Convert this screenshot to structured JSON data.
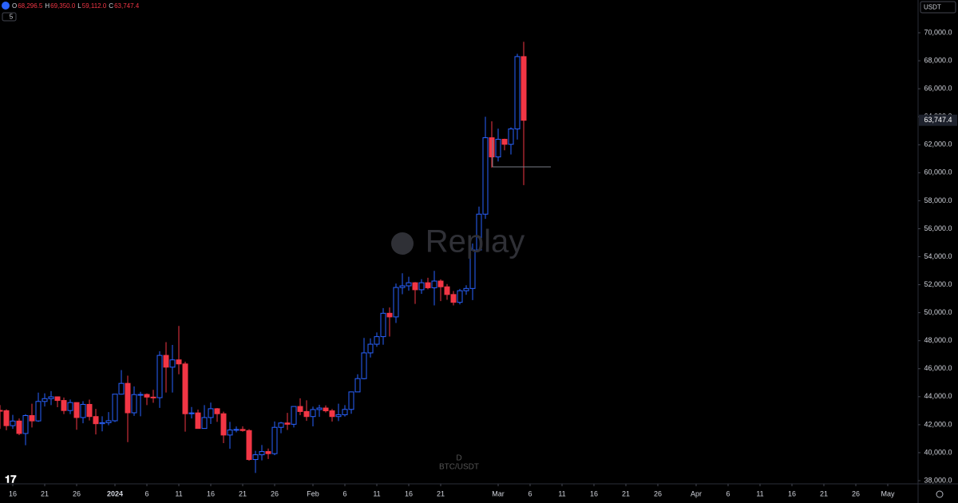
{
  "chart_data": {
    "type": "candlestick",
    "symbol": "BTC/USDT",
    "interval": "D",
    "watermark": "Replay",
    "currency": "USDT",
    "resolution_button": "5",
    "legend_ohlc": [
      {
        "key": "O",
        "value": "68,296.5"
      },
      {
        "key": "H",
        "value": "69,350.0"
      },
      {
        "key": "L",
        "value": "59,112.0"
      },
      {
        "key": "C",
        "value": "63,747.4"
      }
    ],
    "last_price": {
      "value": 63747.4,
      "label": "63,747.4"
    },
    "up_color": "#2962ff",
    "down_color": "#f23645",
    "ylim": [
      37830,
      72340
    ],
    "yticks": [
      {
        "value": 38000,
        "label": "38,000.0"
      },
      {
        "value": 40000,
        "label": "40,000.0"
      },
      {
        "value": 42000,
        "label": "42,000.0"
      },
      {
        "value": 44000,
        "label": "44,000.0"
      },
      {
        "value": 46000,
        "label": "46,000.0"
      },
      {
        "value": 48000,
        "label": "48,000.0"
      },
      {
        "value": 50000,
        "label": "50,000.0"
      },
      {
        "value": 52000,
        "label": "52,000.0"
      },
      {
        "value": 54000,
        "label": "54,000.0"
      },
      {
        "value": 56000,
        "label": "56,000.0"
      },
      {
        "value": 58000,
        "label": "58,000.0"
      },
      {
        "value": 60000,
        "label": "60,000.0"
      },
      {
        "value": 62000,
        "label": "62,000.0"
      },
      {
        "value": 64000,
        "label": "64,000.0"
      },
      {
        "value": 66000,
        "label": "66,000.0"
      },
      {
        "value": 68000,
        "label": "68,000.0"
      },
      {
        "value": 70000,
        "label": "70,000.0"
      }
    ],
    "xticks": [
      {
        "value": "2023-12-16",
        "label": "16"
      },
      {
        "value": "2023-12-21",
        "label": "21"
      },
      {
        "value": "2023-12-26",
        "label": "26"
      },
      {
        "value": "2024-01-01",
        "label": "2024"
      },
      {
        "value": "2024-01-06",
        "label": "6"
      },
      {
        "value": "2024-01-11",
        "label": "11"
      },
      {
        "value": "2024-01-16",
        "label": "16"
      },
      {
        "value": "2024-01-21",
        "label": "21"
      },
      {
        "value": "2024-01-26",
        "label": "26"
      },
      {
        "value": "2024-02-01",
        "label": "Feb"
      },
      {
        "value": "2024-02-06",
        "label": "6"
      },
      {
        "value": "2024-02-11",
        "label": "11"
      },
      {
        "value": "2024-02-16",
        "label": "16"
      },
      {
        "value": "2024-02-21",
        "label": "21"
      },
      {
        "value": "2024-03-01",
        "label": "Mar"
      },
      {
        "value": "2024-03-06",
        "label": "6"
      },
      {
        "value": "2024-03-11",
        "label": "11"
      },
      {
        "value": "2024-03-16",
        "label": "16"
      },
      {
        "value": "2024-03-21",
        "label": "21"
      },
      {
        "value": "2024-03-26",
        "label": "26"
      },
      {
        "value": "2024-04-01",
        "label": "Apr"
      },
      {
        "value": "2024-04-06",
        "label": "6"
      },
      {
        "value": "2024-04-11",
        "label": "11"
      },
      {
        "value": "2024-04-16",
        "label": "16"
      },
      {
        "value": "2024-04-21",
        "label": "21"
      },
      {
        "value": "2024-04-26",
        "label": "26"
      },
      {
        "value": "2024-05-01",
        "label": "May"
      }
    ],
    "categories": [
      "2023-12-14",
      "2023-12-15",
      "2023-12-16",
      "2023-12-17",
      "2023-12-18",
      "2023-12-19",
      "2023-12-20",
      "2023-12-21",
      "2023-12-22",
      "2023-12-23",
      "2023-12-24",
      "2023-12-25",
      "2023-12-26",
      "2023-12-27",
      "2023-12-28",
      "2023-12-29",
      "2023-12-30",
      "2023-12-31",
      "2024-01-01",
      "2024-01-02",
      "2024-01-03",
      "2024-01-04",
      "2024-01-05",
      "2024-01-06",
      "2024-01-07",
      "2024-01-08",
      "2024-01-09",
      "2024-01-10",
      "2024-01-11",
      "2024-01-12",
      "2024-01-13",
      "2024-01-14",
      "2024-01-15",
      "2024-01-16",
      "2024-01-17",
      "2024-01-18",
      "2024-01-19",
      "2024-01-20",
      "2024-01-21",
      "2024-01-22",
      "2024-01-23",
      "2024-01-24",
      "2024-01-25",
      "2024-01-26",
      "2024-01-27",
      "2024-01-28",
      "2024-01-29",
      "2024-01-30",
      "2024-01-31",
      "2024-02-01",
      "2024-02-02",
      "2024-02-03",
      "2024-02-04",
      "2024-02-05",
      "2024-02-06",
      "2024-02-07",
      "2024-02-08",
      "2024-02-09",
      "2024-02-10",
      "2024-02-11",
      "2024-02-12",
      "2024-02-13",
      "2024-02-14",
      "2024-02-15",
      "2024-02-16",
      "2024-02-17",
      "2024-02-18",
      "2024-02-19",
      "2024-02-20",
      "2024-02-21",
      "2024-02-22",
      "2024-02-23",
      "2024-02-24",
      "2024-02-25",
      "2024-02-26",
      "2024-02-27",
      "2024-02-28",
      "2024-02-29",
      "2024-03-01",
      "2024-03-02",
      "2024-03-03",
      "2024-03-04",
      "2024-03-05"
    ],
    "open": [
      43020,
      43000,
      41930,
      42260,
      41370,
      42650,
      42270,
      43660,
      43860,
      43990,
      43730,
      43010,
      43580,
      42510,
      43450,
      42580,
      42070,
      42140,
      42280,
      44180,
      44950,
      42850,
      44150,
      44160,
      43970,
      43930,
      46950,
      46110,
      46630,
      46340,
      42780,
      42840,
      41730,
      42510,
      43140,
      42780,
      41260,
      41620,
      41660,
      41580,
      39510,
      39850,
      40080,
      39930,
      41810,
      42120,
      42030,
      43300,
      42940,
      42580,
      43080,
      43190,
      42990,
      42580,
      42710,
      43090,
      44340,
      45290,
      47130,
      47750,
      48290,
      49960,
      49700,
      51800,
      51920,
      52140,
      51640,
      52140,
      51780,
      52260,
      51850,
      51300,
      50740,
      51570,
      51730,
      54480,
      57040,
      62500,
      61130,
      62390,
      62030,
      63130,
      68296.5
    ],
    "high": [
      43400,
      43100,
      42700,
      42440,
      42750,
      43500,
      44290,
      44240,
      44400,
      44020,
      43940,
      43800,
      43600,
      43680,
      43790,
      43130,
      42600,
      42900,
      44190,
      45900,
      45500,
      44730,
      44350,
      44230,
      44490,
      47250,
      47900,
      47700,
      49050,
      46500,
      43260,
      43080,
      43400,
      43580,
      43190,
      42930,
      42200,
      41870,
      41880,
      41680,
      40130,
      40550,
      40300,
      42230,
      42200,
      42840,
      43310,
      43880,
      43740,
      43290,
      43420,
      43380,
      43120,
      43500,
      43400,
      44370,
      45600,
      48200,
      48170,
      48590,
      50330,
      50370,
      52080,
      52820,
      52570,
      52190,
      52400,
      52500,
      52990,
      52380,
      52050,
      51550,
      51700,
      51960,
      54940,
      57580,
      64000,
      63680,
      63150,
      62430,
      63240,
      68500,
      69350
    ],
    "low": [
      41700,
      41600,
      41700,
      41250,
      40530,
      41800,
      42200,
      43300,
      43400,
      43250,
      42760,
      42760,
      41640,
      42100,
      42300,
      41300,
      41520,
      41960,
      42190,
      44150,
      40750,
      42630,
      42600,
      43400,
      43560,
      43200,
      44300,
      44300,
      45600,
      41500,
      42440,
      41720,
      41720,
      42050,
      42200,
      40680,
      40280,
      41450,
      41500,
      39430,
      38550,
      39450,
      39550,
      39820,
      41390,
      41620,
      41800,
      42680,
      42270,
      41880,
      42560,
      42870,
      42220,
      42260,
      42580,
      42780,
      44330,
      45240,
      46800,
      47560,
      47710,
      48300,
      49270,
      51320,
      51580,
      50630,
      51350,
      51670,
      50520,
      50830,
      50920,
      50520,
      50590,
      51280,
      50900,
      54450,
      56700,
      60360,
      60800,
      61600,
      61300,
      62370,
      59112
    ],
    "close": [
      43000,
      41930,
      42260,
      41370,
      42650,
      42270,
      43660,
      43860,
      43990,
      43730,
      43010,
      43580,
      42510,
      43450,
      42580,
      42070,
      42140,
      42280,
      44180,
      44950,
      42850,
      44150,
      44160,
      43970,
      43930,
      46950,
      46110,
      46630,
      46340,
      42780,
      42840,
      41730,
      42510,
      43140,
      42780,
      41260,
      41620,
      41660,
      41580,
      39510,
      39850,
      40080,
      39930,
      41810,
      42120,
      42030,
      43300,
      42940,
      42580,
      43080,
      43190,
      42990,
      42580,
      42710,
      43090,
      44340,
      45290,
      47130,
      47750,
      48290,
      49960,
      49700,
      51800,
      51920,
      52140,
      51640,
      52140,
      51780,
      52260,
      51850,
      51300,
      50740,
      51570,
      51730,
      54480,
      57040,
      62500,
      61130,
      62390,
      62030,
      63130,
      68296.5,
      63747.4
    ]
  }
}
